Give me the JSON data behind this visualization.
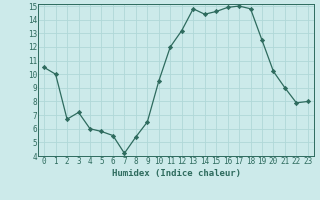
{
  "x": [
    0,
    1,
    2,
    3,
    4,
    5,
    6,
    7,
    8,
    9,
    10,
    11,
    12,
    13,
    14,
    15,
    16,
    17,
    18,
    19,
    20,
    21,
    22,
    23
  ],
  "y": [
    10.5,
    10.0,
    6.7,
    7.2,
    6.0,
    5.8,
    5.5,
    4.2,
    5.4,
    6.5,
    9.5,
    12.0,
    13.2,
    14.8,
    14.4,
    14.6,
    14.9,
    15.0,
    14.8,
    12.5,
    10.2,
    9.0,
    7.9,
    8.0
  ],
  "xlabel": "Humidex (Indice chaleur)",
  "ylim": [
    4,
    15
  ],
  "xlim": [
    -0.5,
    23.5
  ],
  "yticks": [
    4,
    5,
    6,
    7,
    8,
    9,
    10,
    11,
    12,
    13,
    14,
    15
  ],
  "xticks": [
    0,
    1,
    2,
    3,
    4,
    5,
    6,
    7,
    8,
    9,
    10,
    11,
    12,
    13,
    14,
    15,
    16,
    17,
    18,
    19,
    20,
    21,
    22,
    23
  ],
  "line_color": "#2e6b5e",
  "marker": "D",
  "marker_size": 2.2,
  "bg_color": "#cceaea",
  "grid_color": "#b0d8d8",
  "font_family": "monospace",
  "tick_fontsize": 5.5,
  "xlabel_fontsize": 6.5
}
